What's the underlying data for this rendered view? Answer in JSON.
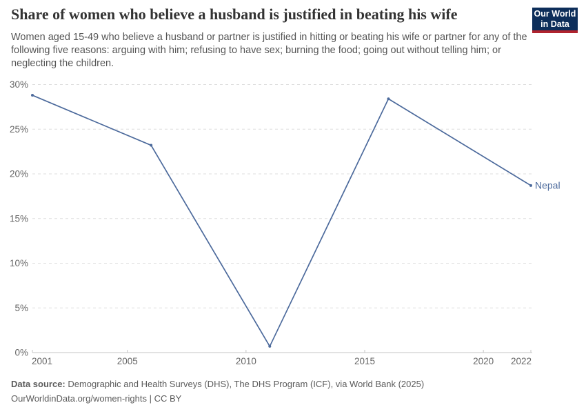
{
  "header": {
    "title": "Share of women who believe a husband is justified in beating his wife",
    "subtitle": "Women aged 15-49 who believe a husband or partner is justified in hitting or beating his wife or partner for any of the following five reasons: arguing with him; refusing to have sex; burning the food; going out without telling him; or neglecting the children.",
    "logo": {
      "line1": "Our World",
      "line2": "in Data",
      "bg_color": "#0d2e5a",
      "stripe_color": "#b0232e"
    }
  },
  "chart_data": {
    "type": "line",
    "title": "Share of women who believe a husband is justified in beating his wife",
    "series": [
      {
        "name": "Nepal",
        "x": [
          2001,
          2006,
          2011,
          2016,
          2022
        ],
        "values": [
          28.8,
          23.2,
          0.7,
          28.4,
          18.7
        ],
        "color": "#4c6a9c"
      }
    ],
    "entity_label": "Nepal",
    "x_ticks": [
      2001,
      2005,
      2010,
      2015,
      2020,
      2022
    ],
    "x_tick_labels": [
      "2001",
      "2005",
      "2010",
      "2015",
      "2020",
      "2022"
    ],
    "y_ticks": [
      0,
      5,
      10,
      15,
      20,
      25,
      30
    ],
    "y_tick_labels": [
      "0%",
      "5%",
      "10%",
      "15%",
      "20%",
      "25%",
      "30%"
    ],
    "xlim": [
      2001,
      2022
    ],
    "ylim": [
      0,
      30
    ],
    "grid": "horizontal-dashed",
    "legend_position": "end-of-line-label",
    "colors": {
      "line": "#4c6a9c",
      "gridline": "#dedede",
      "axis": "#c4c4c4",
      "tick_text": "#666666"
    }
  },
  "footer": {
    "source_label": "Data source:",
    "source_text": " Demographic and Health Surveys (DHS), The DHS Program (ICF), via World Bank (2025)",
    "note": "OurWorldinData.org/women-rights | CC BY"
  }
}
